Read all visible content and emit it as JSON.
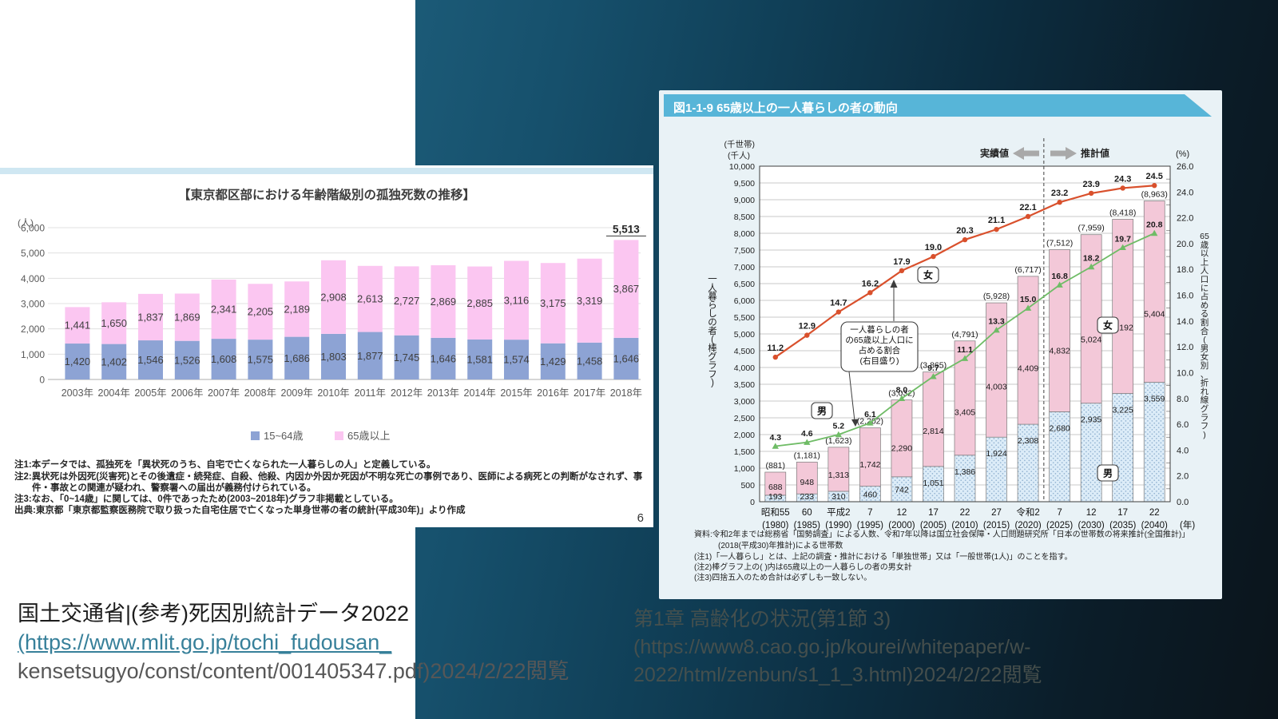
{
  "page": {
    "number": "6"
  },
  "citations": {
    "left": {
      "line1": "国土交通省|(参考)死因別統計データ2022",
      "line2": "(https://www.mlit.go.jp/tochi_fudousan_",
      "line3": "kensetsugyo/const/content/001405347.pdf)2024/2/22閲覧"
    },
    "right": {
      "line1": "第1章 高齢化の状況(第1節 3)",
      "line2": "(https://www8.cao.go.jp/kourei/whitepaper/w-",
      "line3": "2022/html/zenbun/s1_1_3.html)2024/2/22閲覧"
    }
  },
  "chart_data": [
    {
      "id": "tokyo-kodokushi",
      "type": "bar",
      "stacked": true,
      "title": "【東京都区部における年齢階級別の孤独死数の推移】",
      "y_unit": "(人)",
      "ylim": [
        0,
        6000
      ],
      "yticks": [
        0,
        1000,
        2000,
        3000,
        4000,
        5000,
        6000
      ],
      "grid": true,
      "legend_position": "bottom",
      "categories": [
        "2003年",
        "2004年",
        "2005年",
        "2006年",
        "2007年",
        "2008年",
        "2009年",
        "2010年",
        "2011年",
        "2012年",
        "2013年",
        "2014年",
        "2015年",
        "2016年",
        "2017年",
        "2018年"
      ],
      "series": [
        {
          "name": "15~64歳",
          "color": "#8da3d4",
          "values": [
            1420,
            1402,
            1546,
            1526,
            1608,
            1575,
            1686,
            1803,
            1877,
            1745,
            1646,
            1581,
            1574,
            1429,
            1458,
            1646
          ]
        },
        {
          "name": "65歳以上",
          "color": "#fbc6f1",
          "values": [
            1441,
            1650,
            1837,
            1869,
            2341,
            2205,
            2189,
            2908,
            2613,
            2727,
            2869,
            2885,
            3116,
            3175,
            3319,
            3867
          ]
        }
      ],
      "total_label": "5,513",
      "notes": [
        "注1:本データでは、孤独死を「異状死のうち、自宅で亡くなられた一人暮らしの人」と定義している。",
        "注2:異状死は外因死(災害死)とその後遺症・続発症、自殺、他殺、内因か外因か死因が不明な死亡の事例であり、医師による病死との判断がなされず、事",
        "件・事故との関連が疑われ、警察署への届出が義務付けられている。",
        "注3:なお、「0~14歳」に関しては、0件であったため(2003~2018年)グラフ非掲載としている。",
        "出典:東京都「東京都監察医務院で取り扱った自宅住居で亡くなった単身世帯の者の統計(平成30年)」より作成"
      ]
    },
    {
      "id": "hitorigurashi-65plus",
      "type": "bar+line",
      "stacked": true,
      "title": "図1-1-9 65歳以上の一人暮らしの者の動向",
      "unit_left_1": "(千世帯)",
      "unit_left_2": "(千人)",
      "unit_right": "(%)",
      "ylim_left": [
        0,
        10000
      ],
      "ytick_step_left": 500,
      "ylim_right": [
        0,
        26.0
      ],
      "ytick_step_right": 2.0,
      "axis_label_left": "一人暮らしの者(棒グラフ)",
      "axis_label_right": "65歳以上人口に占める割合(男女別、折れ線グラフ)",
      "annotation_actual": "実績値",
      "annotation_projected": "推計値",
      "annotation_box": [
        "一人暮らしの者",
        "の65歳以上人口に",
        "占める割合",
        "(右目盛り)"
      ],
      "gender_labels": {
        "female": "女",
        "male": "男"
      },
      "categories_era": [
        "昭和55",
        "60",
        "平成2",
        "7",
        "12",
        "17",
        "22",
        "27",
        "令和2",
        "7",
        "12",
        "17",
        "22"
      ],
      "categories_year": [
        "(1980)",
        "(1985)",
        "(1990)",
        "(1995)",
        "(2000)",
        "(2005)",
        "(2010)",
        "(2015)",
        "(2020)",
        "(2025)",
        "(2030)",
        "(2035)",
        "(2040)"
      ],
      "year_axis_suffix": "(年)",
      "projection_start_index": 9,
      "bar_series": [
        {
          "name": "男",
          "color": "#dcecf8",
          "values": [
            193,
            233,
            310,
            460,
            742,
            1051,
            1386,
            1924,
            2308,
            2680,
            2935,
            3225,
            3559
          ]
        },
        {
          "name": "女",
          "color": "#f3c8d8",
          "values": [
            688,
            948,
            1313,
            1742,
            2290,
            2814,
            3405,
            4003,
            4409,
            4832,
            5024,
            5192,
            5404
          ]
        }
      ],
      "bar_totals": [
        "(881)",
        "(1,181)",
        "(1,623)",
        "(2,202)",
        "(3,032)",
        "(3,865)",
        "(4,791)",
        "(5,928)",
        "(6,717)",
        "(7,512)",
        "(7,959)",
        "(8,418)",
        "(8,963)"
      ],
      "line_series": [
        {
          "name": "女",
          "color": "#d9502c",
          "marker": "circle",
          "values": [
            11.2,
            12.9,
            14.7,
            16.2,
            17.9,
            19.0,
            20.3,
            21.1,
            22.1,
            23.2,
            23.9,
            24.3,
            24.5
          ]
        },
        {
          "name": "男",
          "color": "#6fbc66",
          "marker": "triangle",
          "values": [
            4.3,
            4.6,
            5.2,
            6.1,
            8.0,
            9.7,
            11.1,
            13.3,
            15.0,
            16.8,
            18.2,
            19.7,
            20.8
          ]
        }
      ],
      "notes": [
        "資料:令和2年までは総務省「国勢調査」による人数、令和7年以降は国立社会保障・人口問題研究所「日本の世帯数の将来推計(全国推計)」",
        "(2018(平成30)年推計)による世帯数",
        "(注1)「一人暮らし」とは、上記の調査・推計における「単独世帯」又は「一般世帯(1人)」のことを指す。",
        "(注2)棒グラフ上の( )内は65歳以上の一人暮らしの者の男女計",
        "(注3)四捨五入のため合計は必ずしも一致しない。"
      ]
    }
  ]
}
